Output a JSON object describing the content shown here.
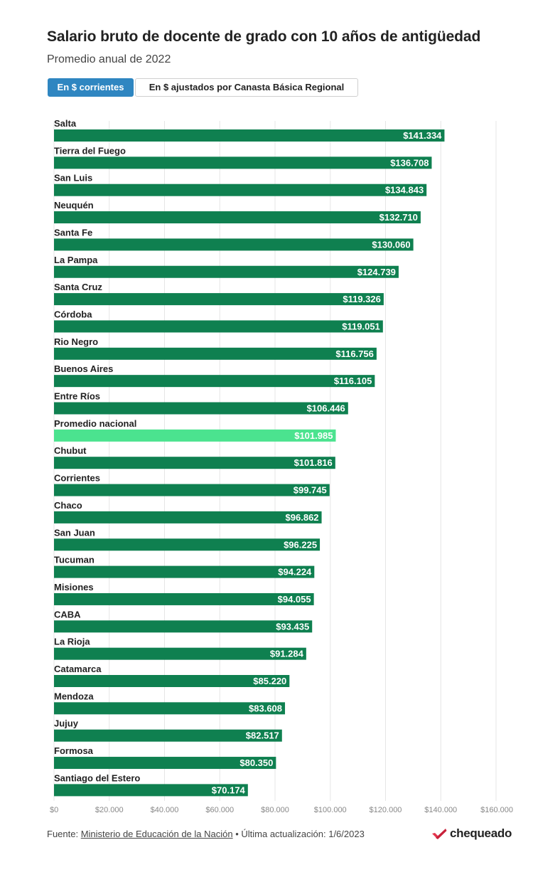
{
  "header": {
    "title": "Salario bruto de docente de grado con 10 años de antigüedad",
    "subtitle": "Promedio anual de 2022"
  },
  "toggles": [
    {
      "label": "En $ corrientes",
      "active": true
    },
    {
      "label": "En $ ajustados por Canasta Básica Regional",
      "active": false
    }
  ],
  "chart_data": {
    "type": "bar",
    "orientation": "horizontal",
    "categories": [
      "Salta",
      "Tierra del Fuego",
      "San Luis",
      "Neuquén",
      "Santa Fe",
      "La Pampa",
      "Santa Cruz",
      "Córdoba",
      "Rio Negro",
      "Buenos Aires",
      "Entre Ríos",
      "Promedio nacional",
      "Chubut",
      "Corrientes",
      "Chaco",
      "San Juan",
      "Tucuman",
      "Misiones",
      "CABA",
      "La Rioja",
      "Catamarca",
      "Mendoza",
      "Jujuy",
      "Formosa",
      "Santiago del Estero"
    ],
    "values": [
      141334,
      136708,
      134843,
      132710,
      130060,
      124739,
      119326,
      119051,
      116756,
      116105,
      106446,
      101985,
      101816,
      99745,
      96862,
      96225,
      94224,
      94055,
      93435,
      91284,
      85220,
      83608,
      82517,
      80350,
      70174
    ],
    "value_labels": [
      "$141.334",
      "$136.708",
      "$134.843",
      "$132.710",
      "$130.060",
      "$124.739",
      "$119.326",
      "$119.051",
      "$116.756",
      "$116.105",
      "$106.446",
      "$101.985",
      "$101.816",
      "$99.745",
      "$96.862",
      "$96.225",
      "$94.224",
      "$94.055",
      "$93.435",
      "$91.284",
      "$85.220",
      "$83.608",
      "$82.517",
      "$80.350",
      "$70.174"
    ],
    "highlight": "Promedio nacional",
    "xlim": [
      0,
      160000
    ],
    "xticks": [
      0,
      20000,
      40000,
      60000,
      80000,
      100000,
      120000,
      140000,
      160000
    ],
    "xtick_labels": [
      "$0",
      "$20.000",
      "$40.000",
      "$60.000",
      "$80.000",
      "$100.000",
      "$120.000",
      "$140.000",
      "$160.000"
    ],
    "colors": {
      "bar": "#0f8050",
      "highlight": "#4be38f",
      "label": "#ffffff"
    },
    "grid": true
  },
  "footer": {
    "source_prefix": "Fuente: ",
    "source_link": "Ministerio de Educación de la Nación",
    "updated": " • Última actualización: 1/6/2023"
  },
  "logo": {
    "text": "chequeado",
    "icon": "chequeado-check-icon"
  }
}
